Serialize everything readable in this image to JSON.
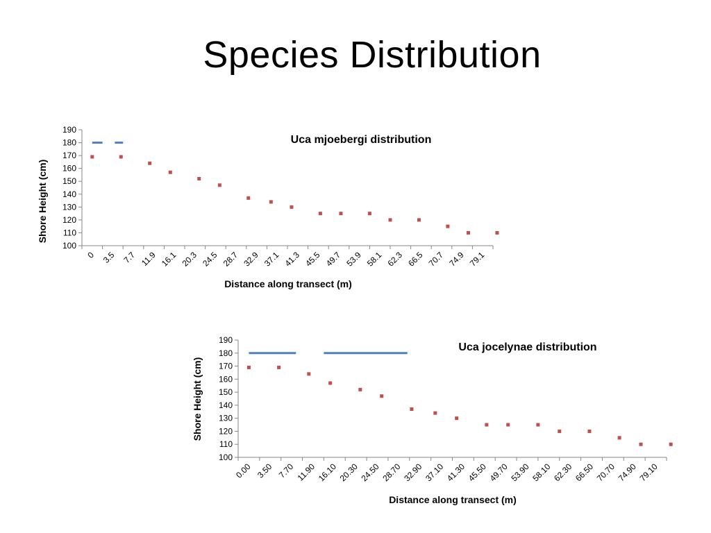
{
  "slide": {
    "title": "Species Distribution"
  },
  "chart_data": [
    {
      "type": "scatter",
      "title": "Uca mjoebergi distribution",
      "xlabel": "Distance along transect (m)",
      "ylabel": "Shore Height (cm)",
      "ylim": [
        100,
        190
      ],
      "y_ticks": [
        "100",
        "110",
        "120",
        "130",
        "140",
        "150",
        "160",
        "170",
        "180",
        "190"
      ],
      "categories": [
        "0",
        "3.5",
        "7.7",
        "11.9",
        "16.1",
        "20.3",
        "24.5",
        "28.7",
        "32.9",
        "37.1",
        "41.3",
        "45.5",
        "49.7",
        "53.9",
        "58.1",
        "62.3",
        "66.5",
        "70.7",
        "74.9",
        "79.1"
      ],
      "series": [
        {
          "values": [
            169,
            169,
            164,
            157,
            152,
            147,
            137,
            134,
            130,
            125,
            125,
            125,
            120,
            120,
            115,
            110,
            110
          ],
          "x_index": [
            0,
            1.4,
            2.8,
            3.8,
            5.2,
            6.2,
            7.6,
            8.7,
            9.7,
            11.1,
            12.1,
            13.5,
            14.5,
            15.9,
            17.3,
            18.3,
            19.7
          ]
        }
      ],
      "presence_segments": [
        [
          0,
          0.5
        ],
        [
          1.1,
          1.5
        ]
      ],
      "grid": false,
      "colors": {
        "points": "#C0504D",
        "presence": "#4F81BD"
      }
    },
    {
      "type": "scatter",
      "title": "Uca jocelynae distribution",
      "xlabel": "Distance along transect (m)",
      "ylabel": "Shore Height (cm)",
      "ylim": [
        100,
        190
      ],
      "y_ticks": [
        "100",
        "110",
        "120",
        "130",
        "140",
        "150",
        "160",
        "170",
        "180",
        "190"
      ],
      "categories": [
        "0.00",
        "3.50",
        "7.70",
        "11.90",
        "16.10",
        "20.30",
        "24.50",
        "28.70",
        "32.90",
        "37.10",
        "41.30",
        "45.50",
        "49.70",
        "53.90",
        "58.10",
        "62.30",
        "66.50",
        "70.70",
        "74.90",
        "79.10"
      ],
      "series": [
        {
          "values": [
            169,
            169,
            164,
            157,
            152,
            147,
            137,
            134,
            130,
            125,
            125,
            125,
            120,
            120,
            115,
            110,
            110
          ],
          "x_index": [
            0,
            1.4,
            2.8,
            3.8,
            5.2,
            6.2,
            7.6,
            8.7,
            9.7,
            11.1,
            12.1,
            13.5,
            14.5,
            15.9,
            17.3,
            18.3,
            19.7
          ]
        }
      ],
      "presence_segments": [
        [
          0,
          2.2
        ],
        [
          3.5,
          7.4
        ]
      ],
      "grid": false,
      "colors": {
        "points": "#C0504D",
        "presence": "#4F81BD"
      }
    }
  ]
}
